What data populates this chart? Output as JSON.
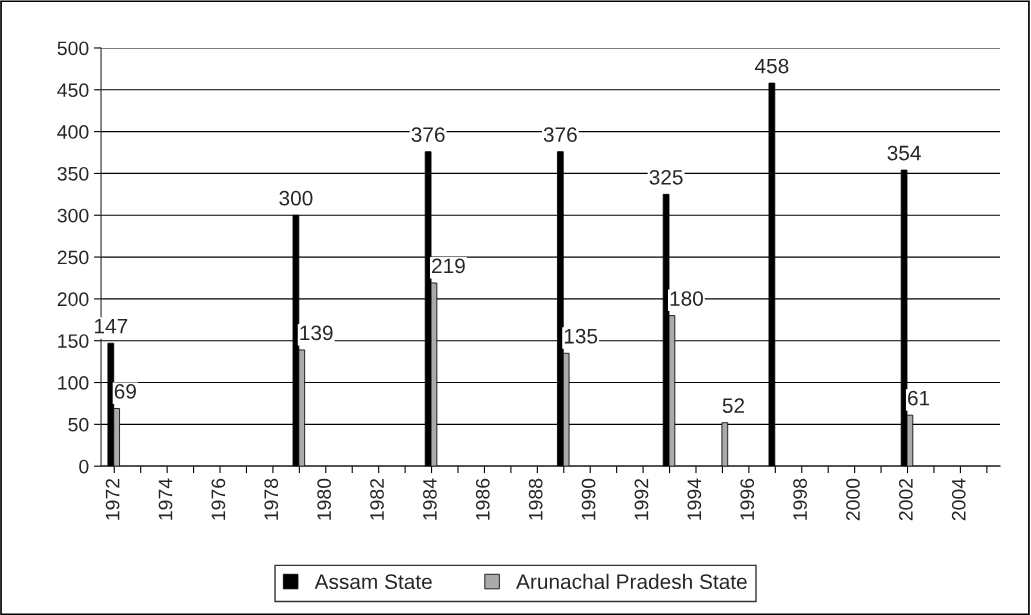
{
  "chart_data": {
    "type": "bar",
    "categories": [
      "1972",
      null,
      "1974",
      null,
      "1976",
      null,
      "1978",
      null,
      "1980",
      null,
      "1982",
      null,
      "1984",
      null,
      "1986",
      null,
      "1988",
      null,
      "1990",
      null,
      "1992",
      null,
      "1994",
      null,
      "1996",
      null,
      "1998",
      null,
      "2000",
      null,
      "2002",
      null,
      "2004",
      null
    ],
    "series": [
      {
        "name": "Assam State",
        "color": "#000000",
        "values": [
          147,
          null,
          null,
          null,
          null,
          null,
          null,
          300,
          null,
          null,
          null,
          null,
          376,
          null,
          null,
          null,
          null,
          376,
          null,
          null,
          null,
          325,
          null,
          null,
          null,
          458,
          null,
          null,
          null,
          null,
          354,
          null,
          null,
          null
        ]
      },
      {
        "name": "Arunachal Pradesh State",
        "color": "#aaaaaa",
        "values": [
          69,
          null,
          null,
          null,
          null,
          null,
          null,
          139,
          null,
          null,
          null,
          null,
          219,
          null,
          null,
          null,
          null,
          135,
          null,
          null,
          null,
          180,
          null,
          52,
          null,
          null,
          null,
          null,
          null,
          null,
          61,
          null,
          null,
          null
        ]
      }
    ],
    "ylim": [
      0,
      500
    ],
    "yticks": [
      0,
      50,
      100,
      150,
      200,
      250,
      300,
      350,
      400,
      450,
      500
    ],
    "grid": "y",
    "legend": "bottom",
    "data_labels": true
  }
}
